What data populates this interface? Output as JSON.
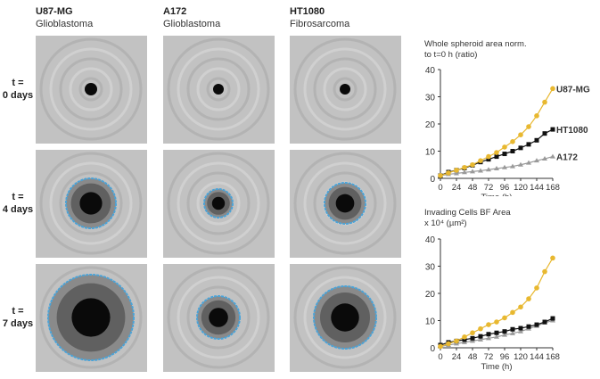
{
  "columns": [
    {
      "name": "U87-MG",
      "type": "Glioblastoma"
    },
    {
      "name": "A172",
      "type": "Glioblastoma"
    },
    {
      "name": "HT1080",
      "type": "Fibrosarcoma"
    }
  ],
  "rows": [
    {
      "label1": "t =",
      "label2": "0 days"
    },
    {
      "label1": "t =",
      "label2": "4 days"
    },
    {
      "label1": "t =",
      "label2": "7 days"
    }
  ],
  "colors": {
    "U87-MG": "#e8b830",
    "HT1080": "#111111",
    "A172": "#9a9a9a",
    "outline": "#4aa3d8"
  },
  "chart_data": [
    {
      "type": "line",
      "title": "Whole spheroid area norm. to t=0 h (ratio)",
      "title_lines": [
        "Whole spheroid area norm.",
        "to t=0 h (ratio)"
      ],
      "xlabel": "Time (h)",
      "ylabel": "",
      "xlim": [
        0,
        168
      ],
      "ylim": [
        0,
        40
      ],
      "xticks": [
        "0",
        "24",
        "48",
        "72",
        "96",
        "120",
        "144",
        "168"
      ],
      "yticks": [
        "0",
        "10",
        "20",
        "30",
        "40"
      ],
      "grid": false,
      "legend": "inline-right",
      "x": [
        0,
        12,
        24,
        36,
        48,
        60,
        72,
        84,
        96,
        108,
        120,
        132,
        144,
        156,
        168
      ],
      "series": [
        {
          "name": "U87-MG",
          "values": [
            1,
            2,
            3,
            4,
            5,
            6.5,
            8,
            9.5,
            11.5,
            13.5,
            16,
            19,
            23,
            28,
            33
          ]
        },
        {
          "name": "HT1080",
          "values": [
            1,
            2.3,
            3,
            3.8,
            4.8,
            6,
            7,
            8,
            9,
            10,
            11.2,
            12.5,
            14,
            16.5,
            18
          ]
        },
        {
          "name": "A172",
          "values": [
            1,
            1.5,
            1.8,
            2.2,
            2.5,
            2.8,
            3.2,
            3.6,
            4,
            4.4,
            5,
            5.7,
            6.5,
            7.2,
            8
          ]
        }
      ]
    },
    {
      "type": "line",
      "title": "Invading Cells BF Area x 10⁴ (µm²)",
      "title_lines": [
        "Invading Cells BF Area",
        "x 10⁴ (µm²)"
      ],
      "xlabel": "Time (h)",
      "ylabel": "",
      "xlim": [
        0,
        168
      ],
      "ylim": [
        0,
        40
      ],
      "xticks": [
        "0",
        "24",
        "48",
        "72",
        "96",
        "120",
        "144",
        "168"
      ],
      "yticks": [
        "0",
        "10",
        "20",
        "30",
        "40"
      ],
      "grid": false,
      "legend": "none",
      "x": [
        0,
        12,
        24,
        36,
        48,
        60,
        72,
        84,
        96,
        108,
        120,
        132,
        144,
        156,
        168
      ],
      "series": [
        {
          "name": "U87-MG",
          "values": [
            0.5,
            1.5,
            2.5,
            4,
            5.5,
            7,
            8.5,
            9.5,
            11,
            13,
            15,
            18,
            22,
            28,
            33
          ]
        },
        {
          "name": "HT1080",
          "values": [
            1,
            2,
            2.5,
            3,
            3.5,
            4.2,
            5,
            5.5,
            6,
            6.8,
            7.2,
            7.8,
            8.5,
            9.5,
            10.8
          ]
        },
        {
          "name": "A172",
          "values": [
            0.5,
            1,
            1.5,
            2,
            2.5,
            3,
            3.5,
            4,
            4.7,
            5.3,
            6,
            7,
            8,
            9.2,
            10
          ]
        }
      ]
    }
  ]
}
